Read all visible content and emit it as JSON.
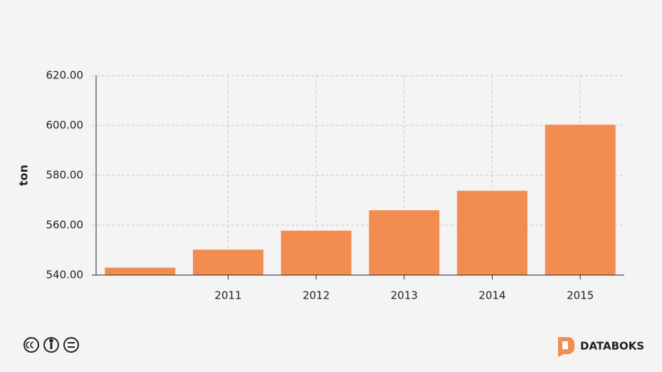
{
  "chart_data": {
    "type": "bar",
    "y_label": "ton",
    "categories": [
      null,
      "2011",
      "2012",
      "2013",
      "2014",
      "2015"
    ],
    "values": [
      543,
      550.2,
      557.8,
      566,
      573.8,
      600.3
    ],
    "color": "#f28c50",
    "ylim": [
      540,
      620
    ],
    "yticks": [
      {
        "value": 540,
        "label": "540.00"
      },
      {
        "value": 560,
        "label": "560.00"
      },
      {
        "value": 580,
        "label": "580.00"
      },
      {
        "value": 600,
        "label": "600.00"
      },
      {
        "value": 620,
        "label": "620.00"
      }
    ],
    "grid": true
  },
  "footer": {
    "brand": "DATABOKS"
  }
}
